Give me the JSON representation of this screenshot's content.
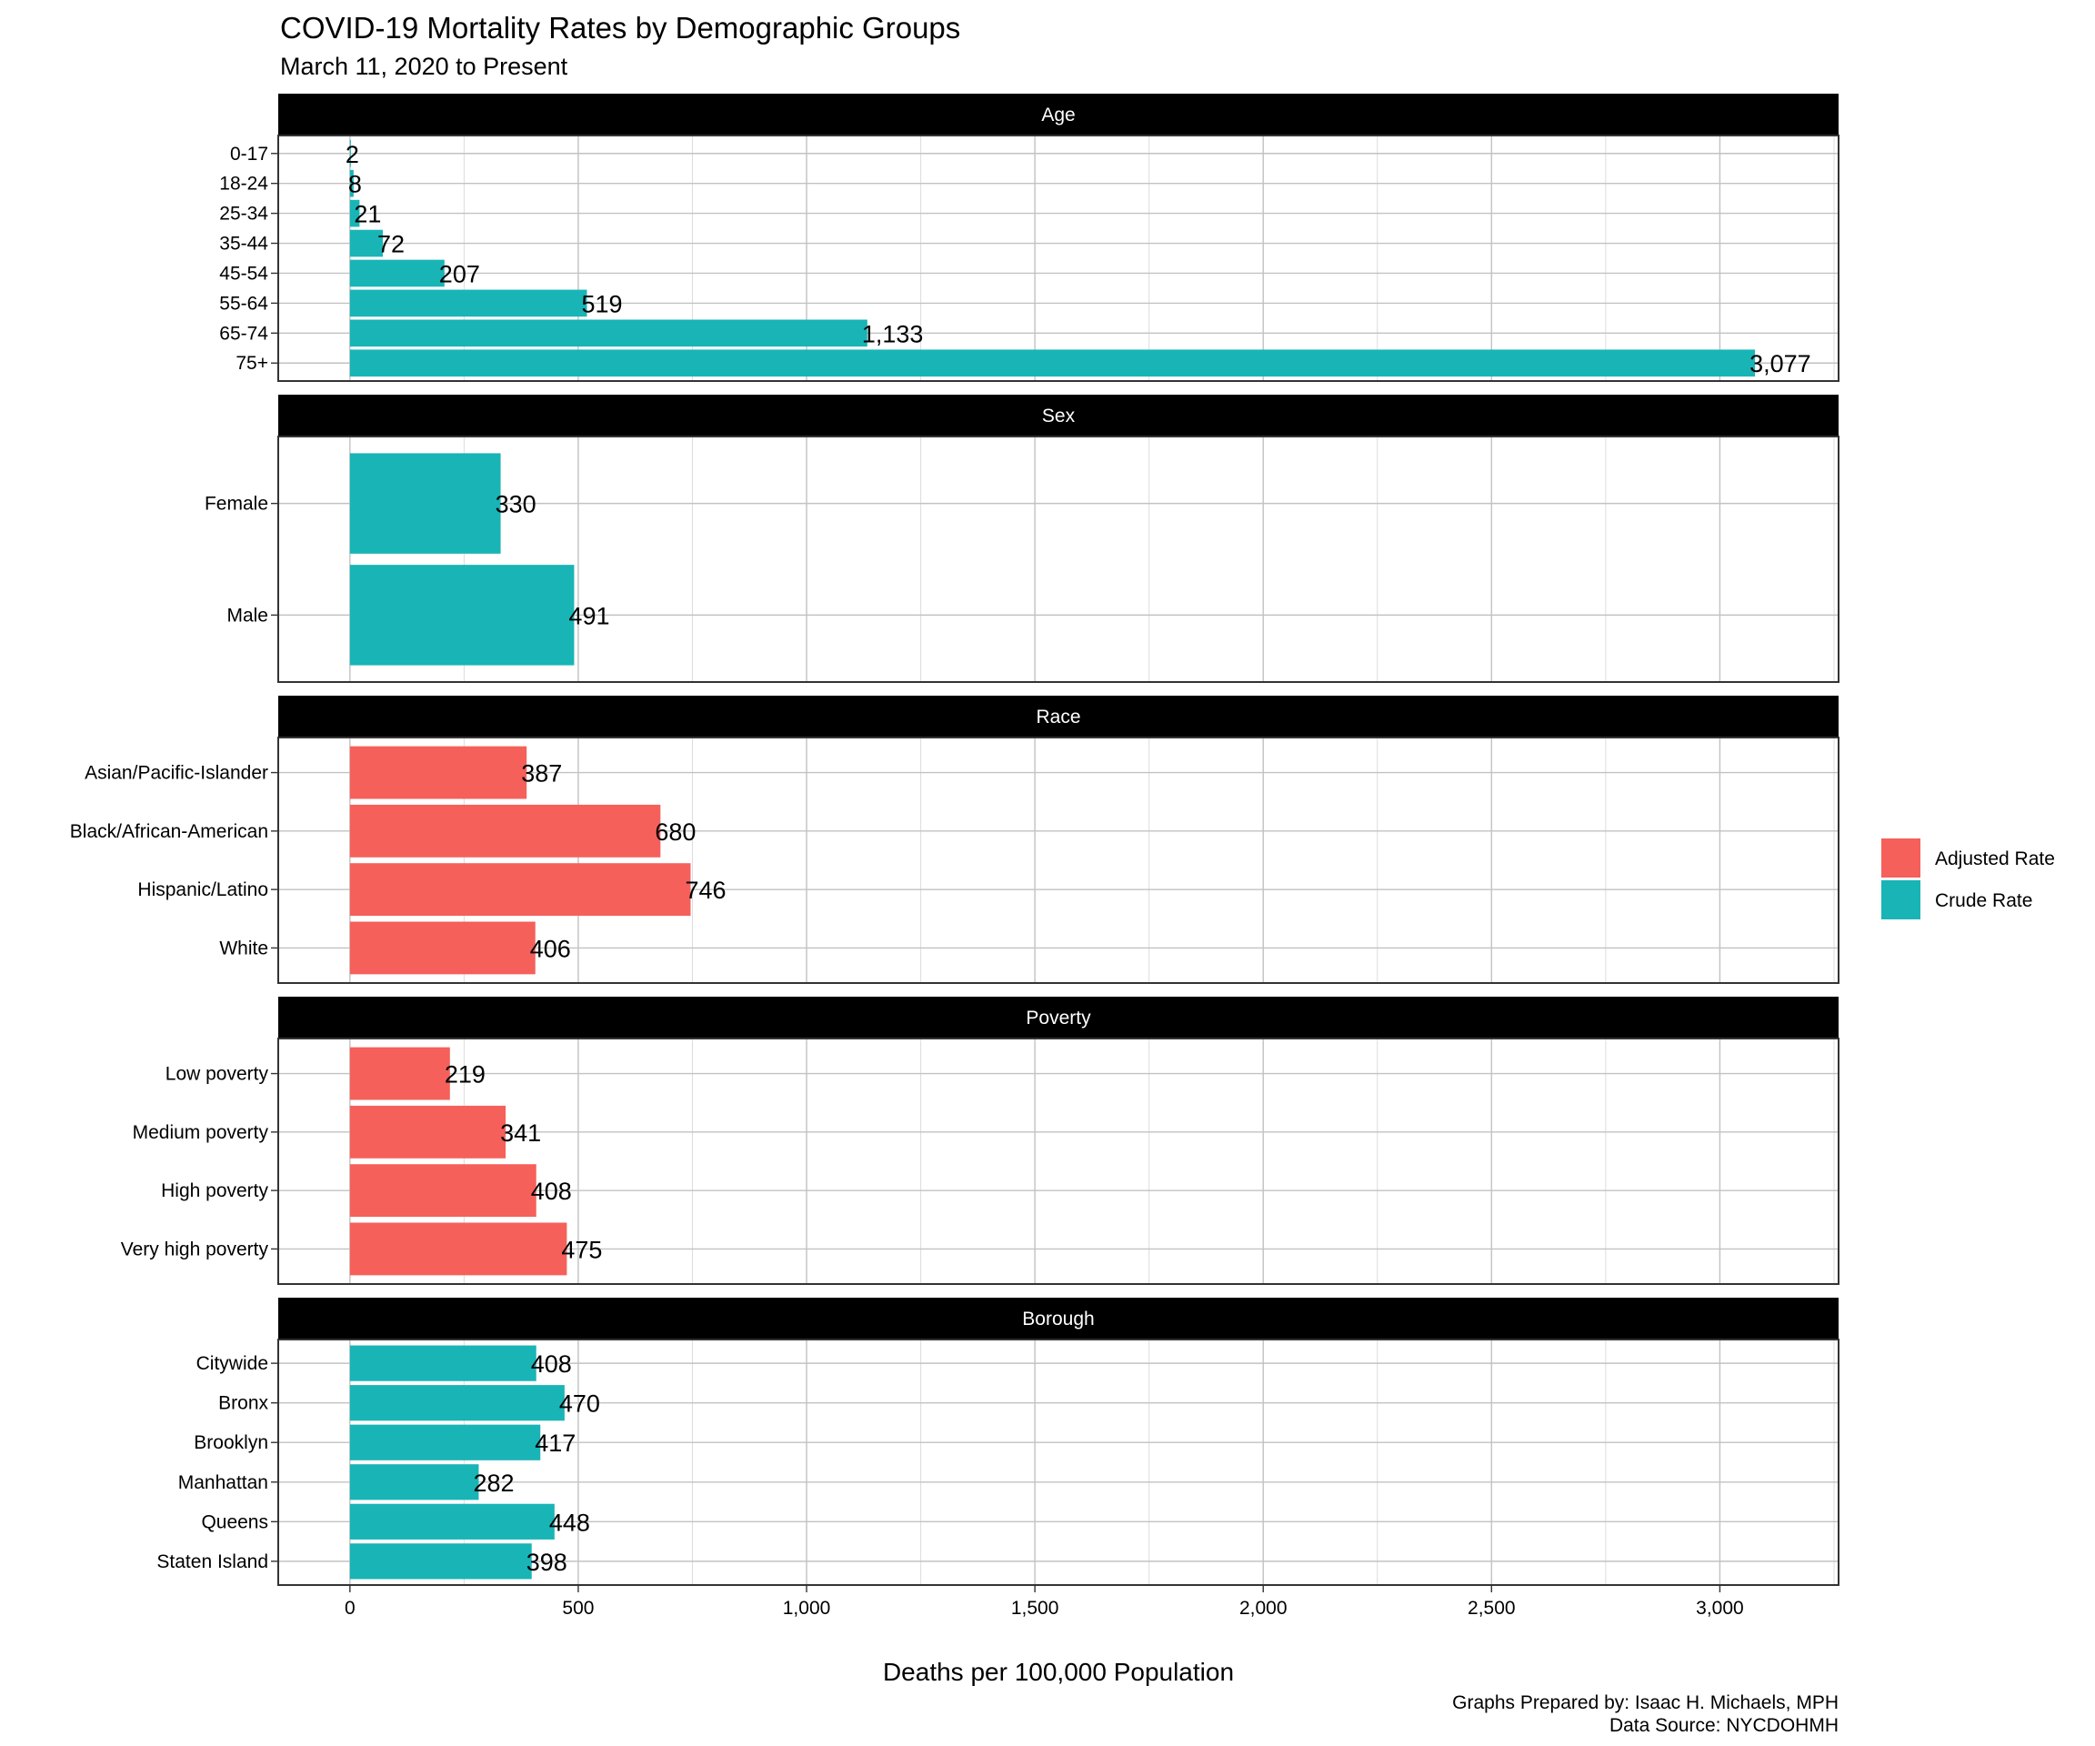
{
  "chart_data": {
    "type": "bar",
    "orientation": "horizontal",
    "title": "COVID-19 Mortality Rates by Demographic Groups",
    "subtitle": "March 11, 2020 to Present",
    "xlabel": "Deaths per 100,000 Population",
    "ylabel": "",
    "xlim": [
      -157,
      3260
    ],
    "xticks": [
      0,
      500,
      1000,
      1500,
      2000,
      2500,
      3000
    ],
    "xtick_labels": [
      "0",
      "500",
      "1,000",
      "1,500",
      "2,000",
      "2,500",
      "3,000"
    ],
    "grid": true,
    "legend": {
      "placement": "right",
      "entries": [
        {
          "name": "Adjusted Rate",
          "color": "#F8766D"
        },
        {
          "name": "Crude Rate",
          "color": "#00BFC4"
        }
      ]
    },
    "caption": [
      "Graphs Prepared by: Isaac H. Michaels, MPH",
      "Data Source: NYCDOHMH"
    ],
    "facets": [
      {
        "name": "Age",
        "series": "Crude Rate",
        "categories": [
          "0-17",
          "18-24",
          "25-34",
          "35-44",
          "45-54",
          "55-64",
          "65-74",
          "75+"
        ],
        "values": [
          2,
          8,
          21,
          72,
          207,
          519,
          1133,
          3077
        ],
        "labels": [
          "2",
          "8",
          "21",
          "72",
          "207",
          "519",
          "1,133",
          "3,077"
        ]
      },
      {
        "name": "Sex",
        "series": "Crude Rate",
        "categories": [
          "Female",
          "Male"
        ],
        "values": [
          330,
          491
        ],
        "labels": [
          "330",
          "491"
        ]
      },
      {
        "name": "Race",
        "series": "Adjusted Rate",
        "categories": [
          "Asian/Pacific-Islander",
          "Black/African-American",
          "Hispanic/Latino",
          "White"
        ],
        "values": [
          387,
          680,
          746,
          406
        ],
        "labels": [
          "387",
          "680",
          "746",
          "406"
        ]
      },
      {
        "name": "Poverty",
        "series": "Adjusted Rate",
        "categories": [
          "Low poverty",
          "Medium poverty",
          "High poverty",
          "Very high poverty"
        ],
        "values": [
          219,
          341,
          408,
          475
        ],
        "labels": [
          "219",
          "341",
          "408",
          "475"
        ]
      },
      {
        "name": "Borough",
        "series": "Crude Rate",
        "categories": [
          "Citywide",
          "Bronx",
          "Brooklyn",
          "Manhattan",
          "Queens",
          "Staten Island"
        ],
        "values": [
          408,
          470,
          417,
          282,
          448,
          398
        ],
        "labels": [
          "408",
          "470",
          "417",
          "282",
          "448",
          "398"
        ]
      }
    ]
  }
}
